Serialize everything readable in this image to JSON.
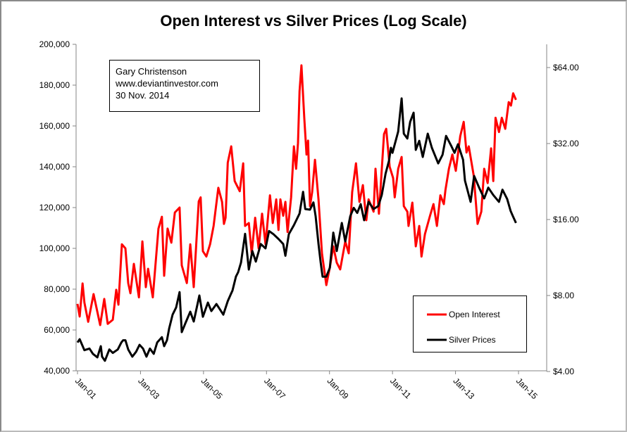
{
  "chart_data": {
    "type": "line",
    "title": "Open Interest vs Silver Prices (Log Scale)",
    "annotation": [
      "Gary Christenson",
      "www.deviantinvestor.com",
      "30 Nov. 2014"
    ],
    "x_axis": {
      "min": 2001.0,
      "max": 2015.0,
      "ticks": [
        2001,
        2003,
        2005,
        2007,
        2009,
        2011,
        2013,
        2015
      ],
      "tick_labels": [
        "Jan-01",
        "Jan-03",
        "Jan-05",
        "Jan-07",
        "Jan-09",
        "Jan-11",
        "Jan-13",
        "Jan-15"
      ]
    },
    "y_left": {
      "min": 40000,
      "max": 200000,
      "scale": "linear",
      "ticks": [
        40000,
        60000,
        80000,
        100000,
        120000,
        140000,
        160000,
        180000,
        200000
      ],
      "tick_labels": [
        "40,000",
        "60,000",
        "80,000",
        "100,000",
        "120,000",
        "140,000",
        "160,000",
        "180,000",
        "200,000"
      ]
    },
    "y_right": {
      "min": 4,
      "max": 64,
      "scale": "log2",
      "ticks": [
        4,
        8,
        16,
        32,
        64
      ],
      "tick_labels": [
        "$4.00",
        "$8.00",
        "$16.00",
        "$32.00",
        "$64.00"
      ]
    },
    "legend": {
      "placement": "bottom-right",
      "entries": [
        "Open Interest",
        "Silver Prices"
      ]
    },
    "colors": {
      "open_interest": "#ff0000",
      "silver": "#000000"
    },
    "series": [
      {
        "name": "Open Interest",
        "axis": "left",
        "points": [
          [
            2001.0,
            72800
          ],
          [
            2001.07,
            66600
          ],
          [
            2001.16,
            82800
          ],
          [
            2001.22,
            73500
          ],
          [
            2001.34,
            64000
          ],
          [
            2001.51,
            77600
          ],
          [
            2001.72,
            62400
          ],
          [
            2001.85,
            75200
          ],
          [
            2001.96,
            63000
          ],
          [
            2002.12,
            65000
          ],
          [
            2002.23,
            79700
          ],
          [
            2002.3,
            72400
          ],
          [
            2002.41,
            102000
          ],
          [
            2002.52,
            100000
          ],
          [
            2002.61,
            83000
          ],
          [
            2002.68,
            78000
          ],
          [
            2002.79,
            92400
          ],
          [
            2002.95,
            76000
          ],
          [
            2003.06,
            103400
          ],
          [
            2003.17,
            81000
          ],
          [
            2003.24,
            90000
          ],
          [
            2003.39,
            76000
          ],
          [
            2003.57,
            109700
          ],
          [
            2003.68,
            115500
          ],
          [
            2003.75,
            86600
          ],
          [
            2003.86,
            109700
          ],
          [
            2003.98,
            102800
          ],
          [
            2004.09,
            117600
          ],
          [
            2004.24,
            120000
          ],
          [
            2004.31,
            91700
          ],
          [
            2004.47,
            83000
          ],
          [
            2004.58,
            102000
          ],
          [
            2004.69,
            81000
          ],
          [
            2004.85,
            123000
          ],
          [
            2004.91,
            125000
          ],
          [
            2004.98,
            98600
          ],
          [
            2005.09,
            96000
          ],
          [
            2005.21,
            102000
          ],
          [
            2005.32,
            111000
          ],
          [
            2005.47,
            129700
          ],
          [
            2005.59,
            122800
          ],
          [
            2005.65,
            112000
          ],
          [
            2005.7,
            115000
          ],
          [
            2005.77,
            142000
          ],
          [
            2005.88,
            150000
          ],
          [
            2005.99,
            133000
          ],
          [
            2006.15,
            128000
          ],
          [
            2006.26,
            141700
          ],
          [
            2006.32,
            111000
          ],
          [
            2006.44,
            112400
          ],
          [
            2006.53,
            97600
          ],
          [
            2006.64,
            115000
          ],
          [
            2006.75,
            100000
          ],
          [
            2006.86,
            117000
          ],
          [
            2006.97,
            102000
          ],
          [
            2007.11,
            126000
          ],
          [
            2007.2,
            112400
          ],
          [
            2007.31,
            124000
          ],
          [
            2007.38,
            109000
          ],
          [
            2007.44,
            124000
          ],
          [
            2007.53,
            116000
          ],
          [
            2007.6,
            122800
          ],
          [
            2007.67,
            108000
          ],
          [
            2007.78,
            125000
          ],
          [
            2007.87,
            150000
          ],
          [
            2007.94,
            139000
          ],
          [
            2008.0,
            151700
          ],
          [
            2008.05,
            177000
          ],
          [
            2008.11,
            189700
          ],
          [
            2008.2,
            164000
          ],
          [
            2008.27,
            146000
          ],
          [
            2008.32,
            152800
          ],
          [
            2008.38,
            120700
          ],
          [
            2008.45,
            127600
          ],
          [
            2008.54,
            143400
          ],
          [
            2008.65,
            124000
          ],
          [
            2008.76,
            97600
          ],
          [
            2008.9,
            82000
          ],
          [
            2009.01,
            90700
          ],
          [
            2009.12,
            101000
          ],
          [
            2009.23,
            93000
          ],
          [
            2009.34,
            89700
          ],
          [
            2009.5,
            103400
          ],
          [
            2009.61,
            97600
          ],
          [
            2009.72,
            127600
          ],
          [
            2009.84,
            141700
          ],
          [
            2009.95,
            122800
          ],
          [
            2010.06,
            131000
          ],
          [
            2010.17,
            113800
          ],
          [
            2010.24,
            124000
          ],
          [
            2010.4,
            118000
          ],
          [
            2010.46,
            139000
          ],
          [
            2010.57,
            117000
          ],
          [
            2010.73,
            156000
          ],
          [
            2010.8,
            158600
          ],
          [
            2010.91,
            140000
          ],
          [
            2011.02,
            134500
          ],
          [
            2011.07,
            125000
          ],
          [
            2011.18,
            139000
          ],
          [
            2011.29,
            144800
          ],
          [
            2011.36,
            120700
          ],
          [
            2011.47,
            118000
          ],
          [
            2011.51,
            111000
          ],
          [
            2011.63,
            122400
          ],
          [
            2011.74,
            101000
          ],
          [
            2011.85,
            111000
          ],
          [
            2011.92,
            96000
          ],
          [
            2012.03,
            107000
          ],
          [
            2012.19,
            116000
          ],
          [
            2012.3,
            121700
          ],
          [
            2012.41,
            111000
          ],
          [
            2012.52,
            126000
          ],
          [
            2012.63,
            121700
          ],
          [
            2012.68,
            128600
          ],
          [
            2012.79,
            139000
          ],
          [
            2012.9,
            146000
          ],
          [
            2013.01,
            138000
          ],
          [
            2013.15,
            155000
          ],
          [
            2013.26,
            162000
          ],
          [
            2013.35,
            147000
          ],
          [
            2013.42,
            150000
          ],
          [
            2013.58,
            135500
          ],
          [
            2013.7,
            112000
          ],
          [
            2013.82,
            118000
          ],
          [
            2013.91,
            139000
          ],
          [
            2014.02,
            132000
          ],
          [
            2014.13,
            149000
          ],
          [
            2014.2,
            133000
          ],
          [
            2014.27,
            164000
          ],
          [
            2014.38,
            157000
          ],
          [
            2014.47,
            164000
          ],
          [
            2014.58,
            158600
          ],
          [
            2014.69,
            171700
          ],
          [
            2014.76,
            170000
          ],
          [
            2014.83,
            176000
          ],
          [
            2014.92,
            172800
          ]
        ]
      },
      {
        "name": "Silver Prices",
        "axis": "right",
        "points": [
          [
            2001.0,
            5.21
          ],
          [
            2001.07,
            5.37
          ],
          [
            2001.22,
            4.86
          ],
          [
            2001.38,
            4.93
          ],
          [
            2001.49,
            4.7
          ],
          [
            2001.63,
            4.55
          ],
          [
            2001.74,
            5.04
          ],
          [
            2001.78,
            4.58
          ],
          [
            2001.87,
            4.41
          ],
          [
            2002.01,
            4.89
          ],
          [
            2002.12,
            4.74
          ],
          [
            2002.28,
            4.89
          ],
          [
            2002.39,
            5.21
          ],
          [
            2002.45,
            5.32
          ],
          [
            2002.52,
            5.32
          ],
          [
            2002.61,
            4.89
          ],
          [
            2002.74,
            4.58
          ],
          [
            2002.86,
            4.79
          ],
          [
            2002.97,
            5.1
          ],
          [
            2003.08,
            4.93
          ],
          [
            2003.19,
            4.58
          ],
          [
            2003.3,
            4.93
          ],
          [
            2003.42,
            4.7
          ],
          [
            2003.53,
            5.21
          ],
          [
            2003.68,
            5.47
          ],
          [
            2003.75,
            5.04
          ],
          [
            2003.84,
            5.32
          ],
          [
            2003.91,
            5.92
          ],
          [
            2004.02,
            6.72
          ],
          [
            2004.13,
            7.17
          ],
          [
            2004.24,
            8.25
          ],
          [
            2004.31,
            5.73
          ],
          [
            2004.42,
            6.19
          ],
          [
            2004.58,
            6.9
          ],
          [
            2004.69,
            6.31
          ],
          [
            2004.87,
            8.0
          ],
          [
            2004.98,
            6.59
          ],
          [
            2005.14,
            7.5
          ],
          [
            2005.25,
            6.94
          ],
          [
            2005.41,
            7.4
          ],
          [
            2005.63,
            6.72
          ],
          [
            2005.77,
            7.6
          ],
          [
            2005.88,
            8.16
          ],
          [
            2005.92,
            8.37
          ],
          [
            2006.03,
            9.51
          ],
          [
            2006.1,
            9.89
          ],
          [
            2006.19,
            10.8
          ],
          [
            2006.32,
            14.05
          ],
          [
            2006.44,
            10.14
          ],
          [
            2006.55,
            12.0
          ],
          [
            2006.66,
            10.9
          ],
          [
            2006.82,
            12.8
          ],
          [
            2006.97,
            12.3
          ],
          [
            2007.08,
            14.4
          ],
          [
            2007.22,
            14.0
          ],
          [
            2007.38,
            13.4
          ],
          [
            2007.53,
            12.8
          ],
          [
            2007.6,
            11.5
          ],
          [
            2007.71,
            14.0
          ],
          [
            2007.87,
            15.2
          ],
          [
            2008.05,
            16.9
          ],
          [
            2008.16,
            20.6
          ],
          [
            2008.23,
            17.6
          ],
          [
            2008.38,
            17.5
          ],
          [
            2008.49,
            18.7
          ],
          [
            2008.56,
            16.5
          ],
          [
            2008.65,
            12.8
          ],
          [
            2008.72,
            10.8
          ],
          [
            2008.78,
            9.5
          ],
          [
            2008.9,
            9.5
          ],
          [
            2009.01,
            10.3
          ],
          [
            2009.12,
            14.2
          ],
          [
            2009.23,
            12.0
          ],
          [
            2009.39,
            15.5
          ],
          [
            2009.5,
            13.1
          ],
          [
            2009.66,
            16.5
          ],
          [
            2009.77,
            17.8
          ],
          [
            2009.88,
            17.0
          ],
          [
            2009.99,
            18.4
          ],
          [
            2010.1,
            15.9
          ],
          [
            2010.24,
            18.8
          ],
          [
            2010.4,
            17.6
          ],
          [
            2010.55,
            18.1
          ],
          [
            2010.66,
            20.0
          ],
          [
            2010.78,
            24.3
          ],
          [
            2010.89,
            27.4
          ],
          [
            2010.95,
            30.8
          ],
          [
            2011.0,
            29.4
          ],
          [
            2011.18,
            35.7
          ],
          [
            2011.29,
            48.3
          ],
          [
            2011.36,
            35.0
          ],
          [
            2011.47,
            33.5
          ],
          [
            2011.56,
            39.0
          ],
          [
            2011.67,
            42.4
          ],
          [
            2011.74,
            30.2
          ],
          [
            2011.85,
            32.8
          ],
          [
            2011.96,
            28.3
          ],
          [
            2012.12,
            35.0
          ],
          [
            2012.25,
            30.8
          ],
          [
            2012.45,
            26.7
          ],
          [
            2012.59,
            28.9
          ],
          [
            2012.7,
            34.3
          ],
          [
            2012.86,
            31.4
          ],
          [
            2012.97,
            29.4
          ],
          [
            2013.08,
            31.8
          ],
          [
            2013.24,
            27.6
          ],
          [
            2013.3,
            22.8
          ],
          [
            2013.48,
            18.8
          ],
          [
            2013.59,
            23.8
          ],
          [
            2013.75,
            21.4
          ],
          [
            2013.91,
            19.4
          ],
          [
            2014.04,
            21.4
          ],
          [
            2014.2,
            20.0
          ],
          [
            2014.38,
            18.8
          ],
          [
            2014.49,
            21.0
          ],
          [
            2014.64,
            19.3
          ],
          [
            2014.75,
            17.3
          ],
          [
            2014.82,
            16.5
          ],
          [
            2014.92,
            15.5
          ]
        ]
      }
    ]
  }
}
